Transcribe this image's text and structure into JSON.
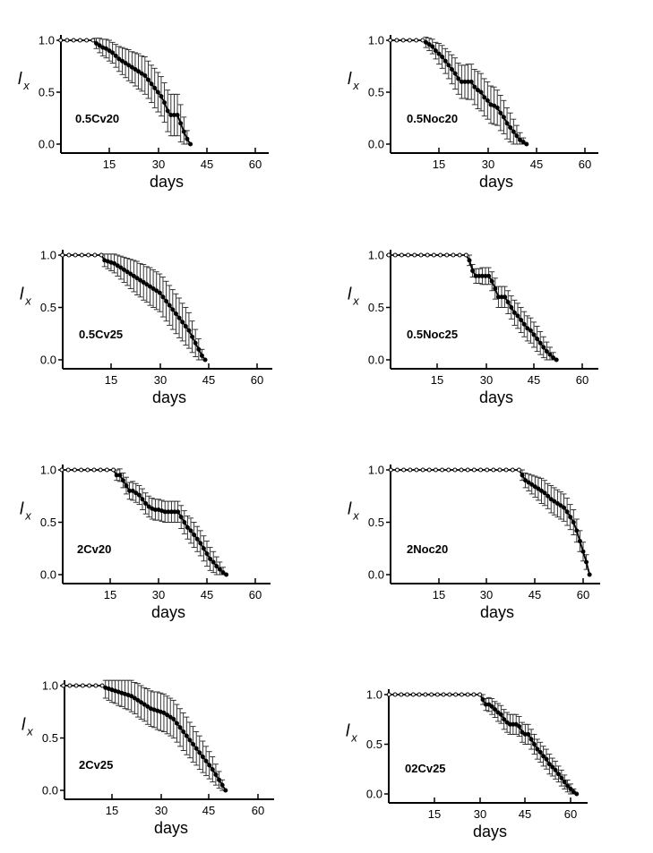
{
  "chart_data": [
    {
      "type": "line",
      "panel_label": "0.5Cv20",
      "xlabel": "days",
      "ylabel": "l",
      "ylabel_sub": "x",
      "xlim": [
        0,
        62
      ],
      "ylim": [
        0,
        1
      ],
      "xticks": [
        15,
        30,
        45,
        60
      ],
      "yticks": [
        0.0,
        0.5,
        1.0
      ],
      "ytick_labels": [
        "0.0",
        "0.5",
        "1.0"
      ],
      "x": [
        0,
        2,
        4,
        6,
        8,
        10,
        11,
        12,
        13,
        14,
        15,
        16,
        17,
        18,
        19,
        20,
        21,
        22,
        23,
        24,
        25,
        26,
        27,
        28,
        29,
        30,
        31,
        32,
        33,
        34,
        35,
        36,
        37,
        38,
        39,
        40
      ],
      "y": [
        1,
        1,
        1,
        1,
        1,
        1,
        0.97,
        0.95,
        0.93,
        0.92,
        0.9,
        0.88,
        0.85,
        0.82,
        0.8,
        0.78,
        0.76,
        0.74,
        0.72,
        0.7,
        0.68,
        0.66,
        0.62,
        0.58,
        0.54,
        0.5,
        0.46,
        0.4,
        0.32,
        0.28,
        0.28,
        0.28,
        0.2,
        0.12,
        0.05,
        0
      ],
      "err": [
        0,
        0,
        0,
        0,
        0,
        0,
        0.05,
        0.07,
        0.08,
        0.09,
        0.1,
        0.1,
        0.11,
        0.12,
        0.13,
        0.14,
        0.15,
        0.15,
        0.16,
        0.17,
        0.17,
        0.18,
        0.18,
        0.18,
        0.19,
        0.19,
        0.19,
        0.19,
        0.2,
        0.2,
        0.2,
        0.2,
        0.18,
        0.14,
        0.08,
        0
      ]
    },
    {
      "type": "line",
      "panel_label": "0.5Noc20",
      "xlabel": "days",
      "ylabel": "l",
      "ylabel_sub": "x",
      "xlim": [
        0,
        62
      ],
      "ylim": [
        0,
        1
      ],
      "xticks": [
        15,
        30,
        45,
        60
      ],
      "yticks": [
        0.0,
        0.5,
        1.0
      ],
      "ytick_labels": [
        "0.0",
        "0.5",
        "1.0"
      ],
      "x": [
        0,
        2,
        4,
        6,
        8,
        10,
        11,
        12,
        13,
        14,
        15,
        16,
        17,
        18,
        19,
        20,
        21,
        22,
        23,
        24,
        25,
        26,
        27,
        28,
        29,
        30,
        31,
        32,
        33,
        34,
        35,
        36,
        37,
        38,
        39,
        40,
        41,
        42
      ],
      "y": [
        1,
        1,
        1,
        1,
        1,
        1,
        0.98,
        0.96,
        0.94,
        0.9,
        0.87,
        0.84,
        0.8,
        0.76,
        0.72,
        0.68,
        0.63,
        0.6,
        0.6,
        0.6,
        0.6,
        0.55,
        0.52,
        0.5,
        0.45,
        0.42,
        0.38,
        0.37,
        0.35,
        0.3,
        0.26,
        0.2,
        0.16,
        0.12,
        0.08,
        0.04,
        0.02,
        0
      ],
      "err": [
        0,
        0,
        0,
        0,
        0,
        0,
        0.05,
        0.06,
        0.07,
        0.08,
        0.1,
        0.11,
        0.12,
        0.13,
        0.14,
        0.15,
        0.15,
        0.16,
        0.16,
        0.17,
        0.17,
        0.17,
        0.18,
        0.18,
        0.18,
        0.18,
        0.18,
        0.18,
        0.17,
        0.17,
        0.16,
        0.15,
        0.14,
        0.12,
        0.1,
        0.07,
        0.04,
        0
      ]
    },
    {
      "type": "line",
      "panel_label": "0.5Cv25",
      "xlabel": "days",
      "ylabel": "l",
      "ylabel_sub": "x",
      "xlim": [
        0,
        62
      ],
      "ylim": [
        0,
        1
      ],
      "xticks": [
        15,
        30,
        45,
        60
      ],
      "yticks": [
        0.0,
        0.5,
        1.0
      ],
      "ytick_labels": [
        "0.0",
        "0.5",
        "1.0"
      ],
      "x": [
        0,
        2,
        4,
        6,
        8,
        10,
        12,
        13,
        14,
        15,
        16,
        17,
        18,
        19,
        20,
        21,
        22,
        23,
        24,
        25,
        26,
        27,
        28,
        29,
        30,
        31,
        32,
        33,
        34,
        35,
        36,
        37,
        38,
        39,
        40,
        41,
        42,
        43,
        44
      ],
      "y": [
        1,
        1,
        1,
        1,
        1,
        1,
        1,
        0.95,
        0.94,
        0.93,
        0.92,
        0.9,
        0.88,
        0.86,
        0.84,
        0.82,
        0.8,
        0.78,
        0.76,
        0.74,
        0.72,
        0.7,
        0.68,
        0.66,
        0.64,
        0.6,
        0.56,
        0.52,
        0.48,
        0.44,
        0.4,
        0.36,
        0.32,
        0.28,
        0.22,
        0.16,
        0.1,
        0.04,
        0
      ],
      "err": [
        0,
        0,
        0,
        0,
        0,
        0,
        0,
        0.06,
        0.07,
        0.08,
        0.09,
        0.1,
        0.11,
        0.12,
        0.13,
        0.14,
        0.15,
        0.16,
        0.16,
        0.17,
        0.17,
        0.18,
        0.18,
        0.18,
        0.18,
        0.19,
        0.19,
        0.19,
        0.19,
        0.19,
        0.19,
        0.18,
        0.18,
        0.17,
        0.15,
        0.13,
        0.1,
        0.06,
        0
      ]
    },
    {
      "type": "line",
      "panel_label": "0.5Noc25",
      "xlabel": "days",
      "ylabel": "l",
      "ylabel_sub": "x",
      "xlim": [
        0,
        62
      ],
      "ylim": [
        0,
        1
      ],
      "xticks": [
        15,
        30,
        45,
        60
      ],
      "yticks": [
        0.0,
        0.5,
        1.0
      ],
      "ytick_labels": [
        "0.0",
        "0.5",
        "1.0"
      ],
      "x": [
        0,
        2,
        4,
        6,
        8,
        10,
        12,
        14,
        16,
        18,
        20,
        22,
        24,
        25,
        26,
        27,
        28,
        29,
        30,
        31,
        32,
        33,
        34,
        35,
        36,
        37,
        38,
        39,
        40,
        41,
        42,
        43,
        44,
        45,
        46,
        47,
        48,
        49,
        50,
        51,
        52
      ],
      "y": [
        1,
        1,
        1,
        1,
        1,
        1,
        1,
        1,
        1,
        1,
        1,
        1,
        1,
        0.95,
        0.85,
        0.8,
        0.8,
        0.8,
        0.8,
        0.8,
        0.75,
        0.68,
        0.6,
        0.6,
        0.6,
        0.55,
        0.5,
        0.45,
        0.42,
        0.38,
        0.34,
        0.3,
        0.28,
        0.24,
        0.2,
        0.16,
        0.12,
        0.08,
        0.05,
        0.02,
        0
      ],
      "err": [
        0,
        0,
        0,
        0,
        0,
        0,
        0,
        0,
        0,
        0,
        0,
        0,
        0,
        0.05,
        0.06,
        0.07,
        0.07,
        0.08,
        0.08,
        0.08,
        0.09,
        0.1,
        0.1,
        0.1,
        0.1,
        0.11,
        0.11,
        0.12,
        0.12,
        0.12,
        0.12,
        0.12,
        0.12,
        0.12,
        0.12,
        0.11,
        0.1,
        0.09,
        0.07,
        0.05,
        0
      ]
    },
    {
      "type": "line",
      "panel_label": "2Cv20",
      "xlabel": "days",
      "ylabel": "l",
      "ylabel_sub": "x",
      "xlim": [
        0,
        62
      ],
      "ylim": [
        0,
        1
      ],
      "xticks": [
        15,
        30,
        45,
        60
      ],
      "yticks": [
        0.0,
        0.5,
        1.0
      ],
      "ytick_labels": [
        "0.0",
        "0.5",
        "1.0"
      ],
      "x": [
        0,
        2,
        4,
        6,
        8,
        10,
        12,
        14,
        16,
        17,
        18,
        19,
        20,
        21,
        22,
        23,
        24,
        25,
        26,
        27,
        28,
        29,
        30,
        31,
        32,
        33,
        34,
        35,
        36,
        37,
        38,
        39,
        40,
        41,
        42,
        43,
        44,
        45,
        46,
        47,
        48,
        49,
        50,
        51
      ],
      "y": [
        1,
        1,
        1,
        1,
        1,
        1,
        1,
        1,
        1,
        0.95,
        0.95,
        0.9,
        0.85,
        0.8,
        0.8,
        0.78,
        0.76,
        0.72,
        0.68,
        0.65,
        0.63,
        0.62,
        0.62,
        0.61,
        0.6,
        0.6,
        0.6,
        0.6,
        0.6,
        0.55,
        0.5,
        0.45,
        0.42,
        0.38,
        0.34,
        0.3,
        0.25,
        0.2,
        0.15,
        0.12,
        0.08,
        0.05,
        0.02,
        0
      ],
      "err": [
        0,
        0,
        0,
        0,
        0,
        0,
        0,
        0,
        0,
        0.05,
        0.06,
        0.07,
        0.08,
        0.08,
        0.09,
        0.09,
        0.09,
        0.1,
        0.1,
        0.1,
        0.1,
        0.1,
        0.1,
        0.1,
        0.1,
        0.1,
        0.1,
        0.1,
        0.1,
        0.11,
        0.11,
        0.11,
        0.12,
        0.12,
        0.12,
        0.12,
        0.12,
        0.12,
        0.11,
        0.1,
        0.09,
        0.07,
        0.05,
        0
      ]
    },
    {
      "type": "line",
      "panel_label": "2Noc20",
      "xlabel": "days",
      "ylabel": "l",
      "ylabel_sub": "x",
      "xlim": [
        0,
        64
      ],
      "ylim": [
        0,
        1
      ],
      "xticks": [
        15,
        30,
        45,
        60
      ],
      "yticks": [
        0.0,
        0.5,
        1.0
      ],
      "ytick_labels": [
        "0.0",
        "0.5",
        "1.0"
      ],
      "x": [
        0,
        2,
        4,
        6,
        8,
        10,
        12,
        14,
        16,
        18,
        20,
        22,
        24,
        26,
        28,
        30,
        32,
        34,
        36,
        38,
        40,
        41,
        42,
        43,
        44,
        45,
        46,
        47,
        48,
        49,
        50,
        51,
        52,
        53,
        54,
        55,
        56,
        57,
        58,
        59,
        60,
        61,
        62
      ],
      "y": [
        1,
        1,
        1,
        1,
        1,
        1,
        1,
        1,
        1,
        1,
        1,
        1,
        1,
        1,
        1,
        1,
        1,
        1,
        1,
        1,
        1,
        0.95,
        0.9,
        0.88,
        0.86,
        0.84,
        0.82,
        0.8,
        0.78,
        0.75,
        0.72,
        0.7,
        0.68,
        0.66,
        0.64,
        0.6,
        0.55,
        0.5,
        0.42,
        0.32,
        0.22,
        0.12,
        0
      ],
      "err": [
        0,
        0,
        0,
        0,
        0,
        0,
        0,
        0,
        0,
        0,
        0,
        0,
        0,
        0,
        0,
        0,
        0,
        0,
        0,
        0,
        0,
        0.05,
        0.07,
        0.08,
        0.09,
        0.1,
        0.11,
        0.12,
        0.12,
        0.12,
        0.13,
        0.13,
        0.13,
        0.13,
        0.13,
        0.13,
        0.12,
        0.12,
        0.11,
        0.1,
        0.09,
        0.07,
        0
      ]
    },
    {
      "type": "line",
      "panel_label": "2Cv25",
      "xlabel": "days",
      "ylabel": "l",
      "ylabel_sub": "x",
      "xlim": [
        0,
        62
      ],
      "ylim": [
        0,
        1
      ],
      "xticks": [
        15,
        30,
        45,
        60
      ],
      "yticks": [
        0.0,
        0.5,
        1.0
      ],
      "ytick_labels": [
        "0.0",
        "0.5",
        "1.0"
      ],
      "x": [
        0,
        2,
        4,
        6,
        8,
        10,
        12,
        13,
        14,
        15,
        16,
        17,
        18,
        19,
        20,
        21,
        22,
        23,
        24,
        25,
        26,
        27,
        28,
        29,
        30,
        31,
        32,
        33,
        34,
        35,
        36,
        37,
        38,
        39,
        40,
        41,
        42,
        43,
        44,
        45,
        46,
        47,
        48,
        49,
        50
      ],
      "y": [
        1,
        1,
        1,
        1,
        1,
        1,
        1,
        0.98,
        0.97,
        0.96,
        0.95,
        0.94,
        0.93,
        0.92,
        0.91,
        0.9,
        0.88,
        0.86,
        0.84,
        0.82,
        0.8,
        0.78,
        0.77,
        0.76,
        0.75,
        0.74,
        0.72,
        0.7,
        0.68,
        0.64,
        0.6,
        0.56,
        0.52,
        0.48,
        0.44,
        0.4,
        0.36,
        0.32,
        0.28,
        0.24,
        0.2,
        0.15,
        0.1,
        0.05,
        0
      ],
      "err": [
        0,
        0,
        0,
        0,
        0,
        0,
        0,
        0.1,
        0.11,
        0.12,
        0.12,
        0.13,
        0.13,
        0.14,
        0.14,
        0.15,
        0.15,
        0.16,
        0.16,
        0.16,
        0.17,
        0.17,
        0.17,
        0.18,
        0.18,
        0.18,
        0.18,
        0.18,
        0.18,
        0.18,
        0.18,
        0.18,
        0.18,
        0.17,
        0.17,
        0.16,
        0.16,
        0.15,
        0.14,
        0.13,
        0.12,
        0.1,
        0.08,
        0.05,
        0
      ]
    },
    {
      "type": "line",
      "panel_label": "02Cv25",
      "xlabel": "days",
      "ylabel": "l",
      "ylabel_sub": "x",
      "xlim": [
        0,
        64
      ],
      "ylim": [
        0,
        1
      ],
      "xticks": [
        15,
        30,
        45,
        60
      ],
      "yticks": [
        0.0,
        0.5,
        1.0
      ],
      "ytick_labels": [
        "0.0",
        "0.5",
        "1.0"
      ],
      "x": [
        0,
        2,
        4,
        6,
        8,
        10,
        12,
        14,
        16,
        18,
        20,
        22,
        24,
        26,
        28,
        30,
        31,
        32,
        33,
        34,
        35,
        36,
        37,
        38,
        39,
        40,
        41,
        42,
        43,
        44,
        45,
        46,
        47,
        48,
        49,
        50,
        51,
        52,
        53,
        54,
        55,
        56,
        57,
        58,
        59,
        60,
        61,
        62
      ],
      "y": [
        1,
        1,
        1,
        1,
        1,
        1,
        1,
        1,
        1,
        1,
        1,
        1,
        1,
        1,
        1,
        1,
        0.95,
        0.9,
        0.9,
        0.88,
        0.85,
        0.82,
        0.8,
        0.75,
        0.72,
        0.7,
        0.7,
        0.7,
        0.68,
        0.62,
        0.6,
        0.6,
        0.55,
        0.5,
        0.45,
        0.42,
        0.38,
        0.35,
        0.3,
        0.27,
        0.24,
        0.2,
        0.16,
        0.12,
        0.08,
        0.05,
        0.02,
        0
      ],
      "err": [
        0,
        0,
        0,
        0,
        0,
        0,
        0,
        0,
        0,
        0,
        0,
        0,
        0,
        0,
        0,
        0,
        0.05,
        0.06,
        0.07,
        0.08,
        0.08,
        0.09,
        0.09,
        0.1,
        0.1,
        0.1,
        0.1,
        0.1,
        0.1,
        0.1,
        0.1,
        0.1,
        0.1,
        0.1,
        0.1,
        0.1,
        0.1,
        0.1,
        0.1,
        0.09,
        0.09,
        0.08,
        0.08,
        0.07,
        0.06,
        0.05,
        0.03,
        0
      ]
    }
  ]
}
